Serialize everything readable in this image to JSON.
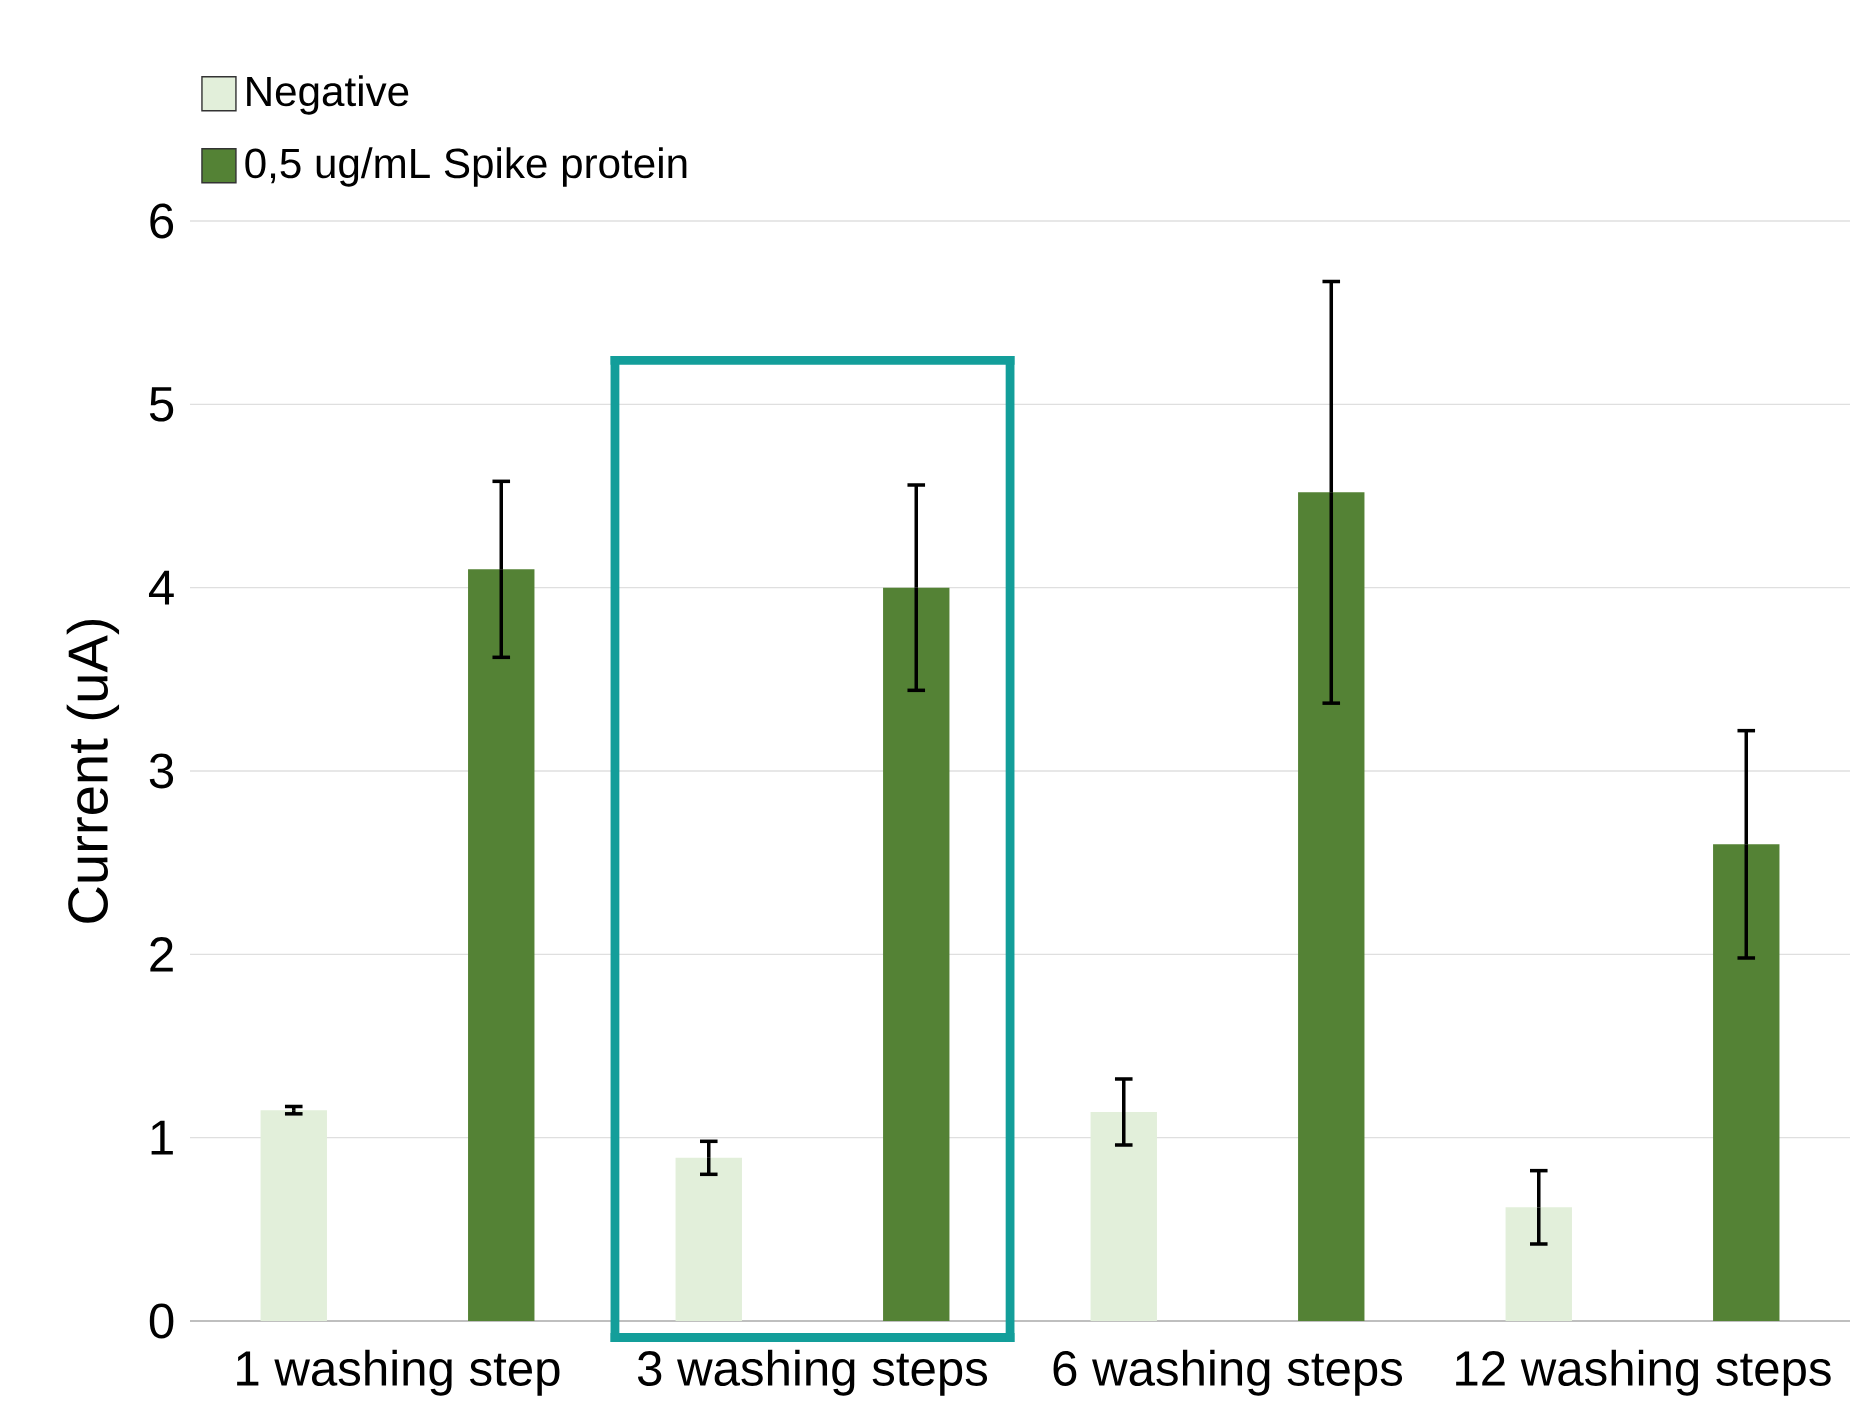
{
  "chart_data": {
    "type": "bar",
    "ylabel": "Current (uA)",
    "categories": [
      "1 washing step",
      "3 washing steps",
      "6 washing steps",
      "12 washing steps"
    ],
    "series": [
      {
        "name": "Negative",
        "color": "#e2efda",
        "values": [
          1.15,
          0.89,
          1.14,
          0.62
        ],
        "errors": [
          0.02,
          0.09,
          0.18,
          0.2
        ]
      },
      {
        "name": "0,5 ug/mL Spike protein",
        "color": "#548235",
        "values": [
          4.1,
          4.0,
          4.52,
          2.6
        ],
        "errors": [
          0.48,
          0.56,
          1.15,
          0.62
        ]
      }
    ],
    "ylim": [
      0,
      6
    ],
    "yticks": [
      0,
      1,
      2,
      3,
      4,
      5,
      6
    ],
    "grid": "y",
    "legend": "top left"
  }
}
